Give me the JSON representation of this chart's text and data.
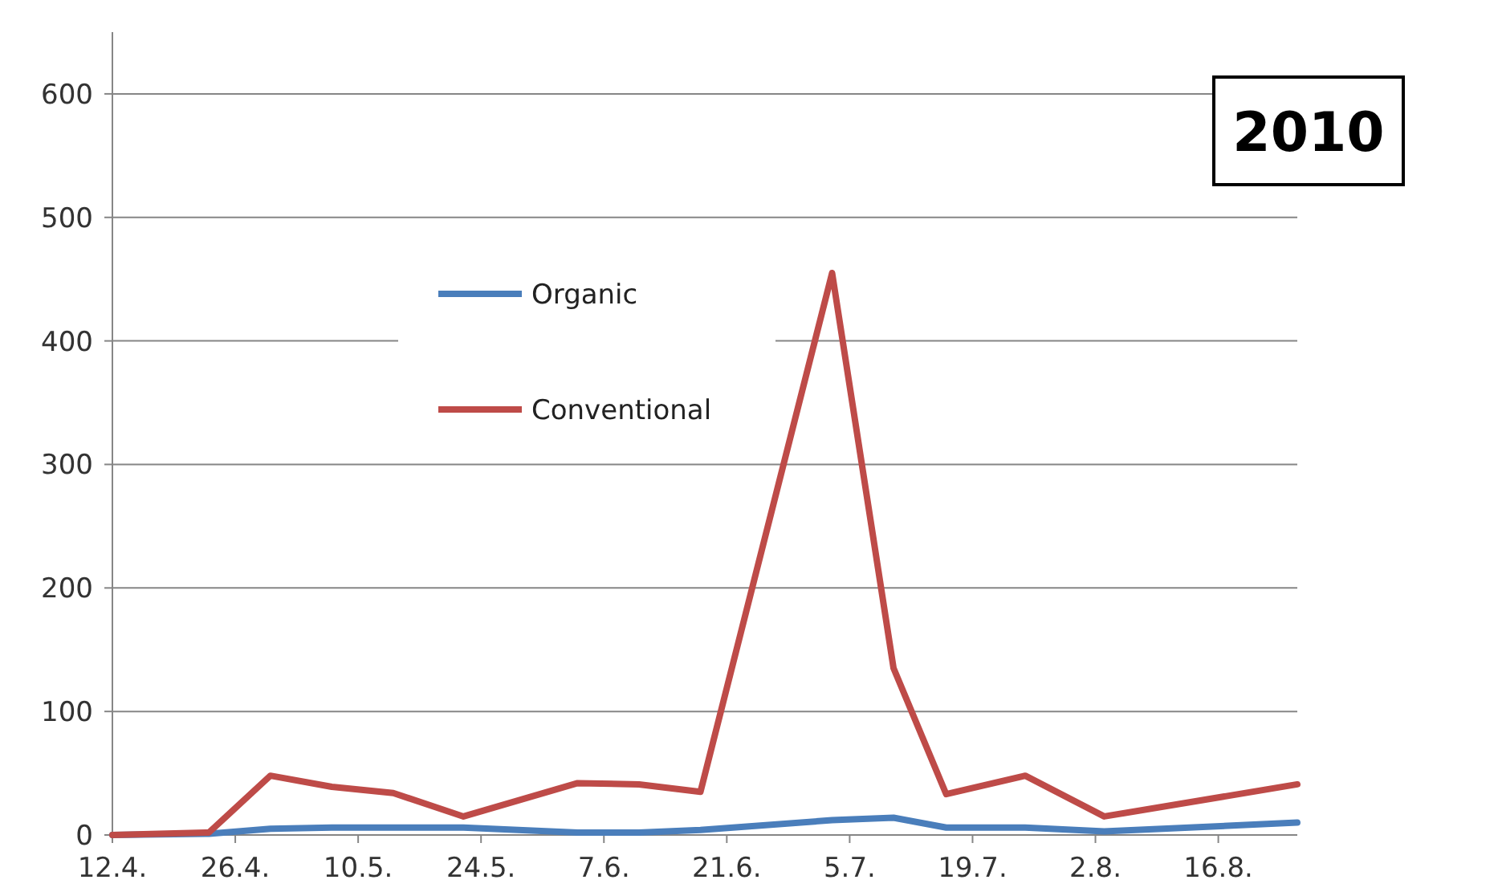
{
  "chart_data": {
    "type": "line",
    "title": "2010",
    "x": [
      "--04-12",
      "--04-23",
      "--04-30",
      "--05-07",
      "--05-14",
      "--05-22",
      "--06-04",
      "--06-11",
      "--06-18",
      "--07-03",
      "--07-10",
      "--07-16",
      "--07-25",
      "--08-03",
      "--08-25"
    ],
    "series": [
      {
        "name": "Organic",
        "color": "#4a7ebb",
        "values": [
          0,
          1,
          5,
          6,
          6,
          6,
          2,
          2,
          4,
          12,
          14,
          6,
          6,
          3,
          10
        ]
      },
      {
        "name": "Conventional",
        "color": "#be4b48",
        "values": [
          0,
          2,
          48,
          39,
          34,
          15,
          42,
          41,
          35,
          455,
          135,
          33,
          48,
          15,
          41
        ]
      }
    ],
    "xlim": [
      "--04-12",
      "--08-25"
    ],
    "xticks": [
      {
        "value": "--04-12",
        "label": "12.4."
      },
      {
        "value": "--04-26",
        "label": "26.4."
      },
      {
        "value": "--05-10",
        "label": "10.5."
      },
      {
        "value": "--05-24",
        "label": "24.5."
      },
      {
        "value": "--06-07",
        "label": "7.6."
      },
      {
        "value": "--06-21",
        "label": "21.6."
      },
      {
        "value": "--07-05",
        "label": "5.7."
      },
      {
        "value": "--07-19",
        "label": "19.7."
      },
      {
        "value": "--08-02",
        "label": "2.8."
      },
      {
        "value": "--08-16",
        "label": "16.8."
      }
    ],
    "ylim": [
      0,
      650
    ],
    "yticks": [
      0,
      100,
      200,
      300,
      400,
      500,
      600
    ],
    "grid": "y",
    "legend": "top",
    "marker": "none",
    "line_style": "solid"
  }
}
